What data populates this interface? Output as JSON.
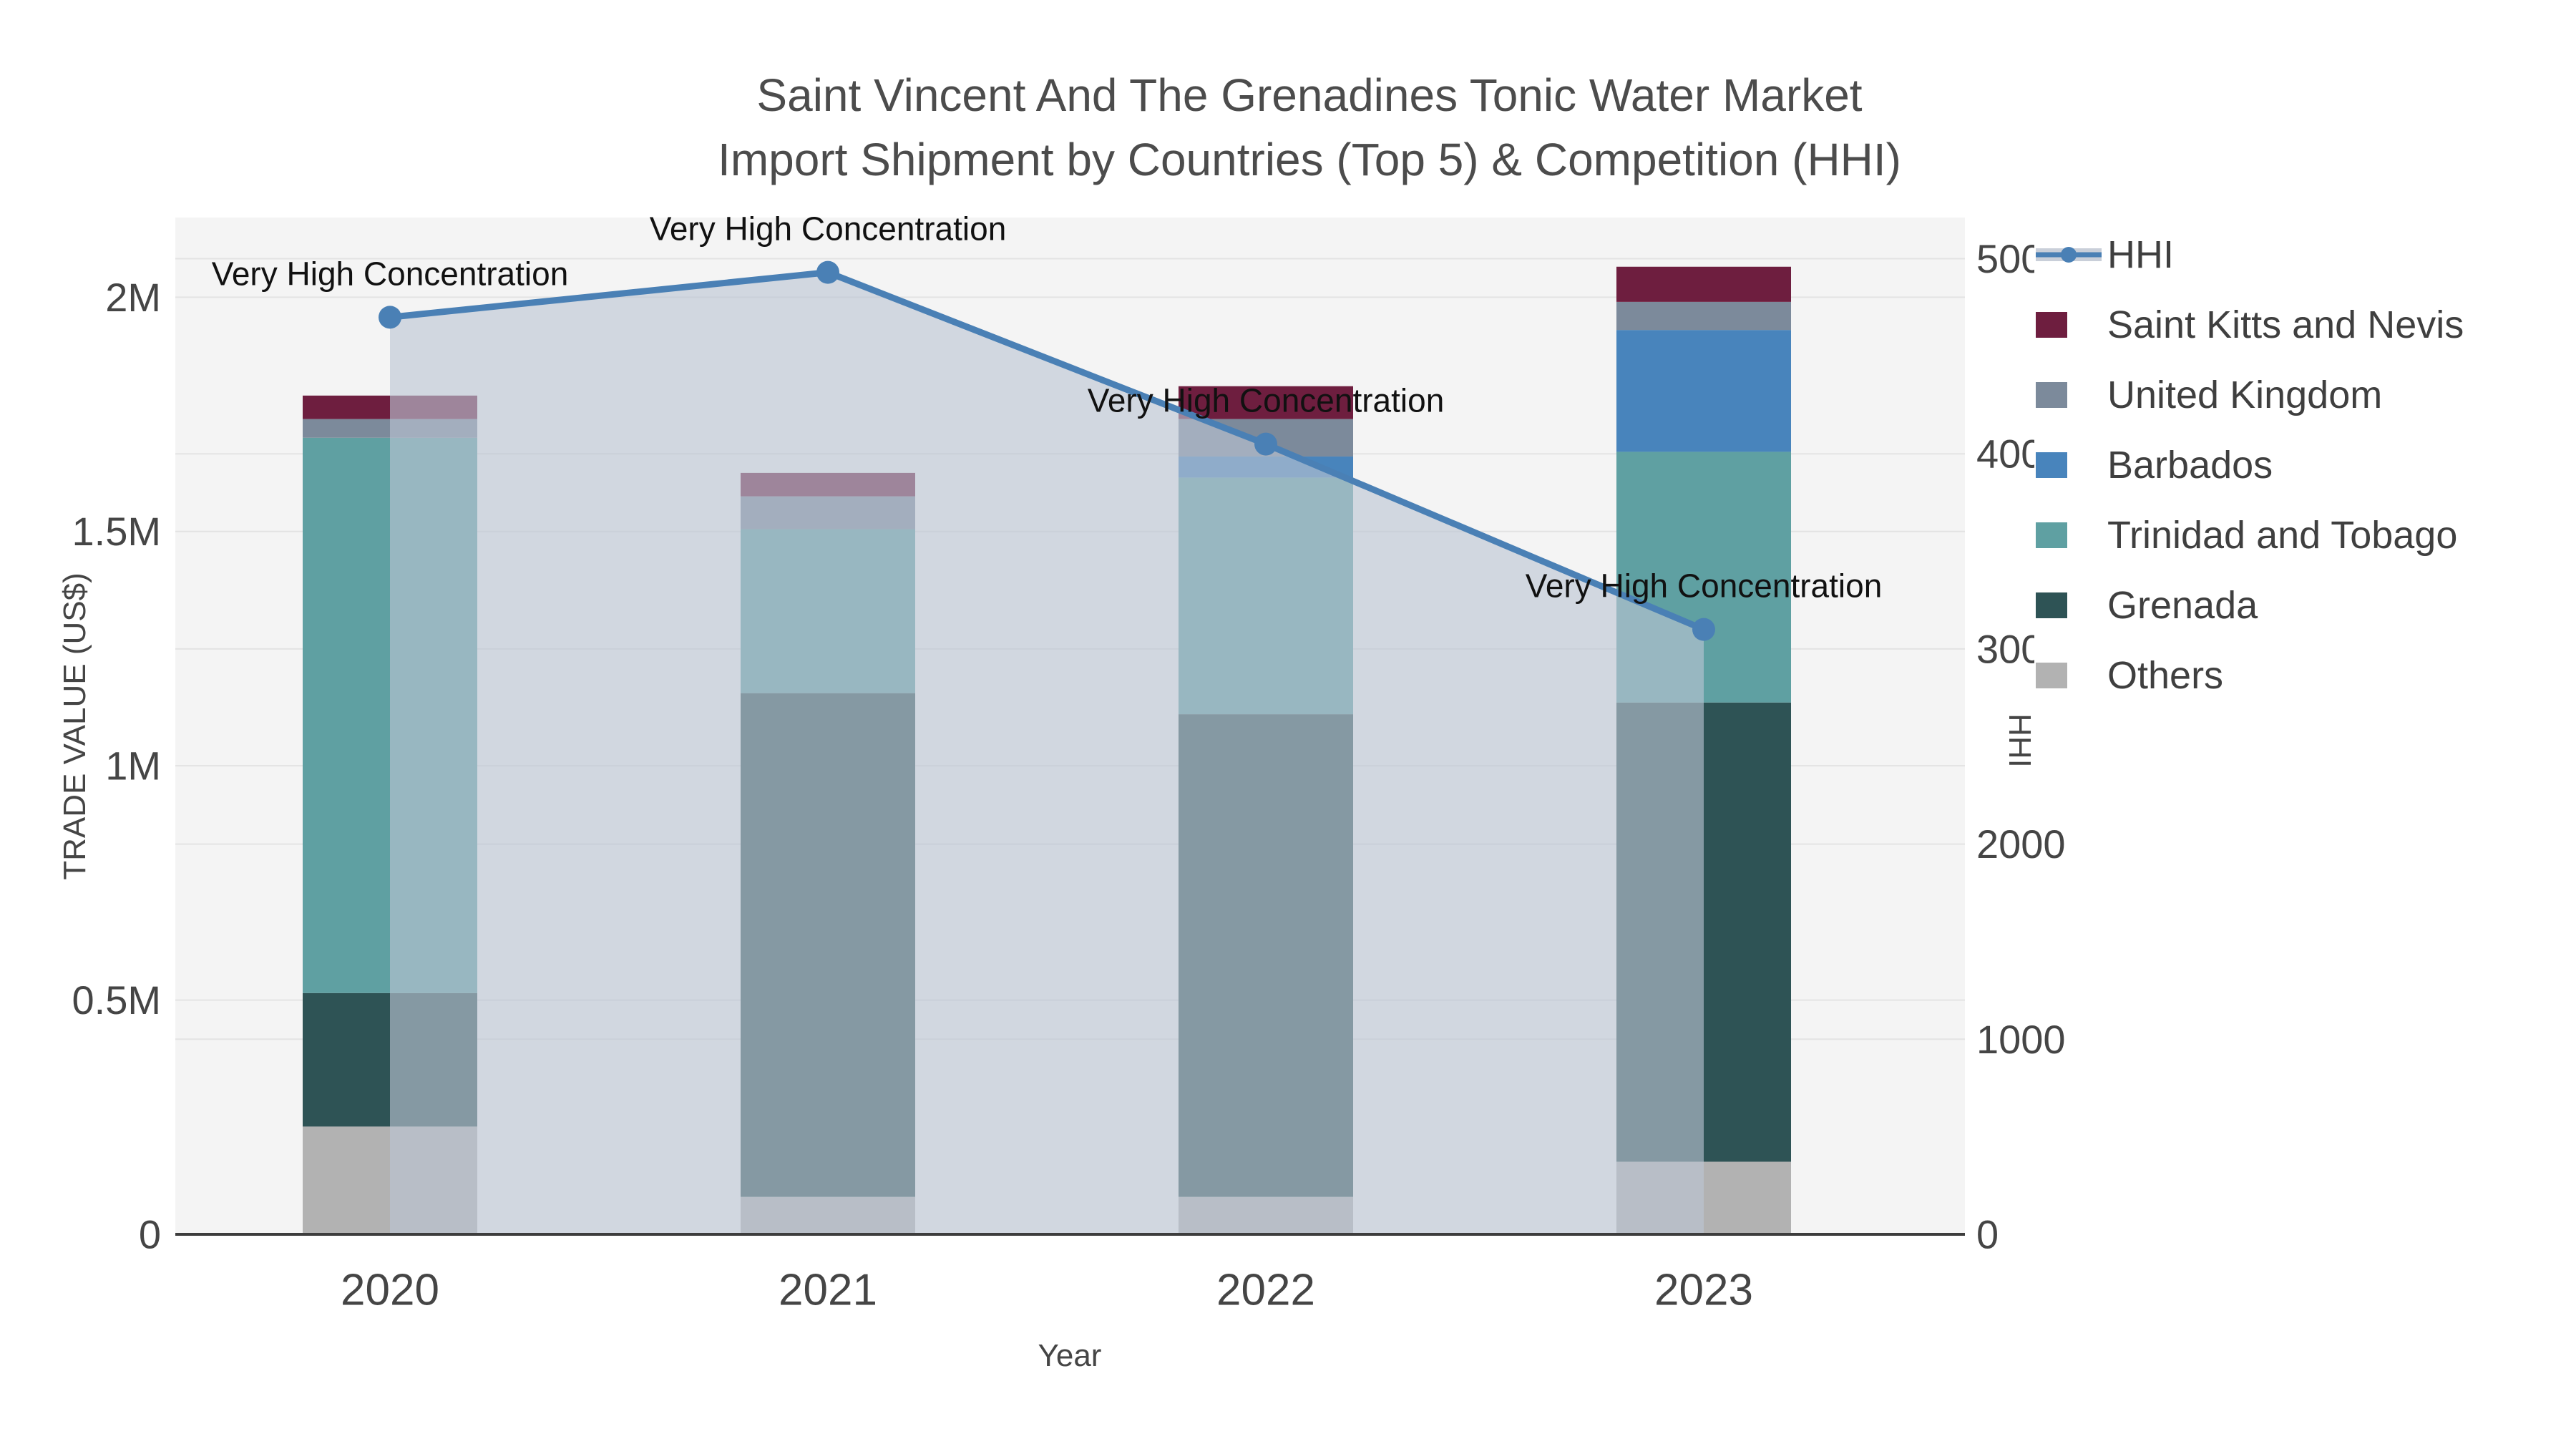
{
  "title": {
    "line1": "Saint Vincent And The Grenadines Tonic Water Market",
    "line2": "Import Shipment by Countries (Top 5) & Competition (HHI)"
  },
  "chart_data": {
    "type": "bar",
    "subtype": "stacked-bars-with-line-on-secondary-axis",
    "categories": [
      "2020",
      "2021",
      "2022",
      "2023"
    ],
    "series": [
      {
        "name": "Others",
        "color": "#b2b2b2",
        "values": [
          230000,
          80000,
          80000,
          155000
        ]
      },
      {
        "name": "Grenada",
        "color": "#2e5355",
        "values": [
          285000,
          1075000,
          1030000,
          980000
        ]
      },
      {
        "name": "Trinidad and Tobago",
        "color": "#5fa0a2",
        "values": [
          1185000,
          350000,
          505000,
          535000
        ]
      },
      {
        "name": "Barbados",
        "color": "#4884bc",
        "values": [
          0,
          0,
          45000,
          260000
        ]
      },
      {
        "name": "United Kingdom",
        "color": "#7c8a9b",
        "values": [
          40000,
          70000,
          80000,
          60000
        ]
      },
      {
        "name": "Saint Kitts and Nevis",
        "color": "#6e1e3f",
        "values": [
          50000,
          50000,
          70000,
          75000
        ]
      }
    ],
    "line_series": {
      "name": "HHI",
      "color": "#4a80b5",
      "area_color": "#bcc5d3",
      "values": [
        4700,
        4930,
        4050,
        3100
      ]
    },
    "annotation_text": "Very High Concentration",
    "annotations": [
      {
        "x": "2020",
        "text": "Very High Concentration"
      },
      {
        "x": "2021",
        "text": "Very High Concentration"
      },
      {
        "x": "2022",
        "text": "Very High Concentration"
      },
      {
        "x": "2023",
        "text": "Very High Concentration"
      }
    ],
    "xlabel": "Year",
    "ylabel": "TRADE VALUE (US$)",
    "y2label": "HHI",
    "ylim": [
      0,
      2170000
    ],
    "y2lim": [
      0,
      5211
    ],
    "yticks": [
      {
        "v": 0,
        "label": "0"
      },
      {
        "v": 500000,
        "label": "0.5M"
      },
      {
        "v": 1000000,
        "label": "1M"
      },
      {
        "v": 1500000,
        "label": "1.5M"
      },
      {
        "v": 2000000,
        "label": "2M"
      }
    ],
    "y2ticks": [
      {
        "v": 0,
        "label": "0"
      },
      {
        "v": 1000,
        "label": "1000"
      },
      {
        "v": 2000,
        "label": "2000"
      },
      {
        "v": 3000,
        "label": "3000"
      },
      {
        "v": 4000,
        "label": "4000"
      },
      {
        "v": 5000,
        "label": "5000"
      }
    ],
    "grid": true,
    "legend_position": "right"
  },
  "legend": {
    "items": [
      {
        "label": "HHI",
        "kind": "line",
        "color": "#4a80b5",
        "band_color": "#c9cfd9"
      },
      {
        "label": "Saint Kitts and Nevis",
        "kind": "square",
        "color": "#6e1e3f"
      },
      {
        "label": "United Kingdom",
        "kind": "square",
        "color": "#7c8a9b"
      },
      {
        "label": "Barbados",
        "kind": "square",
        "color": "#4884bc"
      },
      {
        "label": "Trinidad and Tobago",
        "kind": "square",
        "color": "#5fa0a2"
      },
      {
        "label": "Grenada",
        "kind": "square",
        "color": "#2e5355"
      },
      {
        "label": "Others",
        "kind": "square",
        "color": "#b2b2b2"
      }
    ]
  },
  "colors": {
    "plot_background": "#f4f4f4",
    "gridline": "#e3e3e3",
    "axis_line": "#3d3d3d",
    "tick_text": "#454545",
    "title_text": "#4c4c4c",
    "annotation_text": "#111111"
  }
}
